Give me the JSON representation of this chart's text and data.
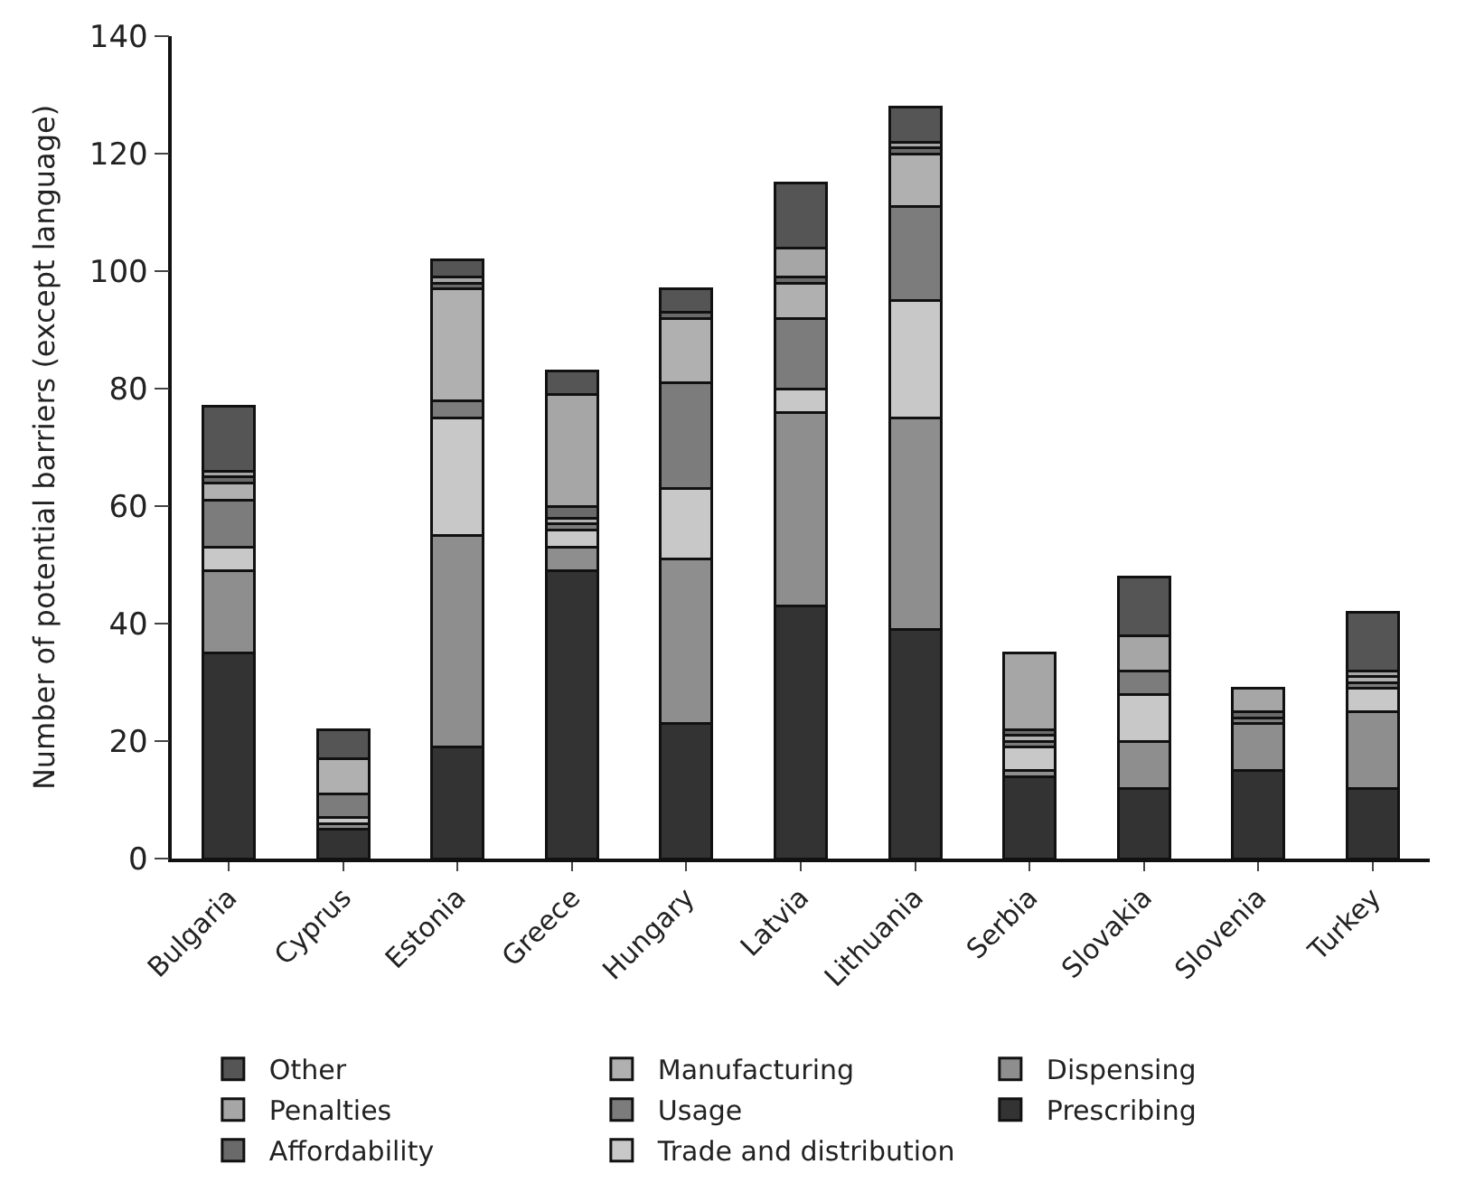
{
  "chart_data": {
    "type": "bar",
    "stacked": true,
    "ylabel": "Number of potential barriers (except language)",
    "categories": [
      "Bulgaria",
      "Cyprus",
      "Estonia",
      "Greece",
      "Hungary",
      "Latvia",
      "Lithuania",
      "Serbia",
      "Slovakia",
      "Slovenia",
      "Turkey"
    ],
    "series": [
      {
        "name": "Prescribing",
        "color": "#333333",
        "values": [
          35,
          5,
          19,
          49,
          23,
          43,
          39,
          14,
          12,
          15,
          12
        ]
      },
      {
        "name": "Dispensing",
        "color": "#8e8e8e",
        "values": [
          14,
          1,
          36,
          4,
          28,
          33,
          36,
          1,
          8,
          8,
          13
        ]
      },
      {
        "name": "Trade and distribution",
        "color": "#c8c8c8",
        "values": [
          4,
          1,
          20,
          3,
          12,
          4,
          20,
          4,
          8,
          0,
          4
        ]
      },
      {
        "name": "Usage",
        "color": "#7c7c7c",
        "values": [
          8,
          4,
          3,
          1,
          18,
          12,
          16,
          1,
          4,
          1,
          1
        ]
      },
      {
        "name": "Manufacturing",
        "color": "#b0b0b0",
        "values": [
          3,
          6,
          19,
          1,
          11,
          6,
          9,
          1,
          0,
          0,
          1
        ]
      },
      {
        "name": "Affordability",
        "color": "#6a6a6a",
        "values": [
          1,
          0,
          1,
          2,
          1,
          1,
          1,
          1,
          0,
          1,
          0
        ]
      },
      {
        "name": "Penalties",
        "color": "#a6a6a6",
        "values": [
          1,
          0,
          1,
          19,
          0,
          5,
          1,
          13,
          6,
          4,
          1
        ]
      },
      {
        "name": "Other",
        "color": "#555555",
        "values": [
          11,
          5,
          3,
          4,
          4,
          11,
          6,
          0,
          10,
          0,
          10
        ]
      }
    ],
    "ylim": [
      0,
      140
    ],
    "yticks": [
      0,
      20,
      40,
      60,
      80,
      100,
      120,
      140
    ],
    "legend": "bottom"
  }
}
